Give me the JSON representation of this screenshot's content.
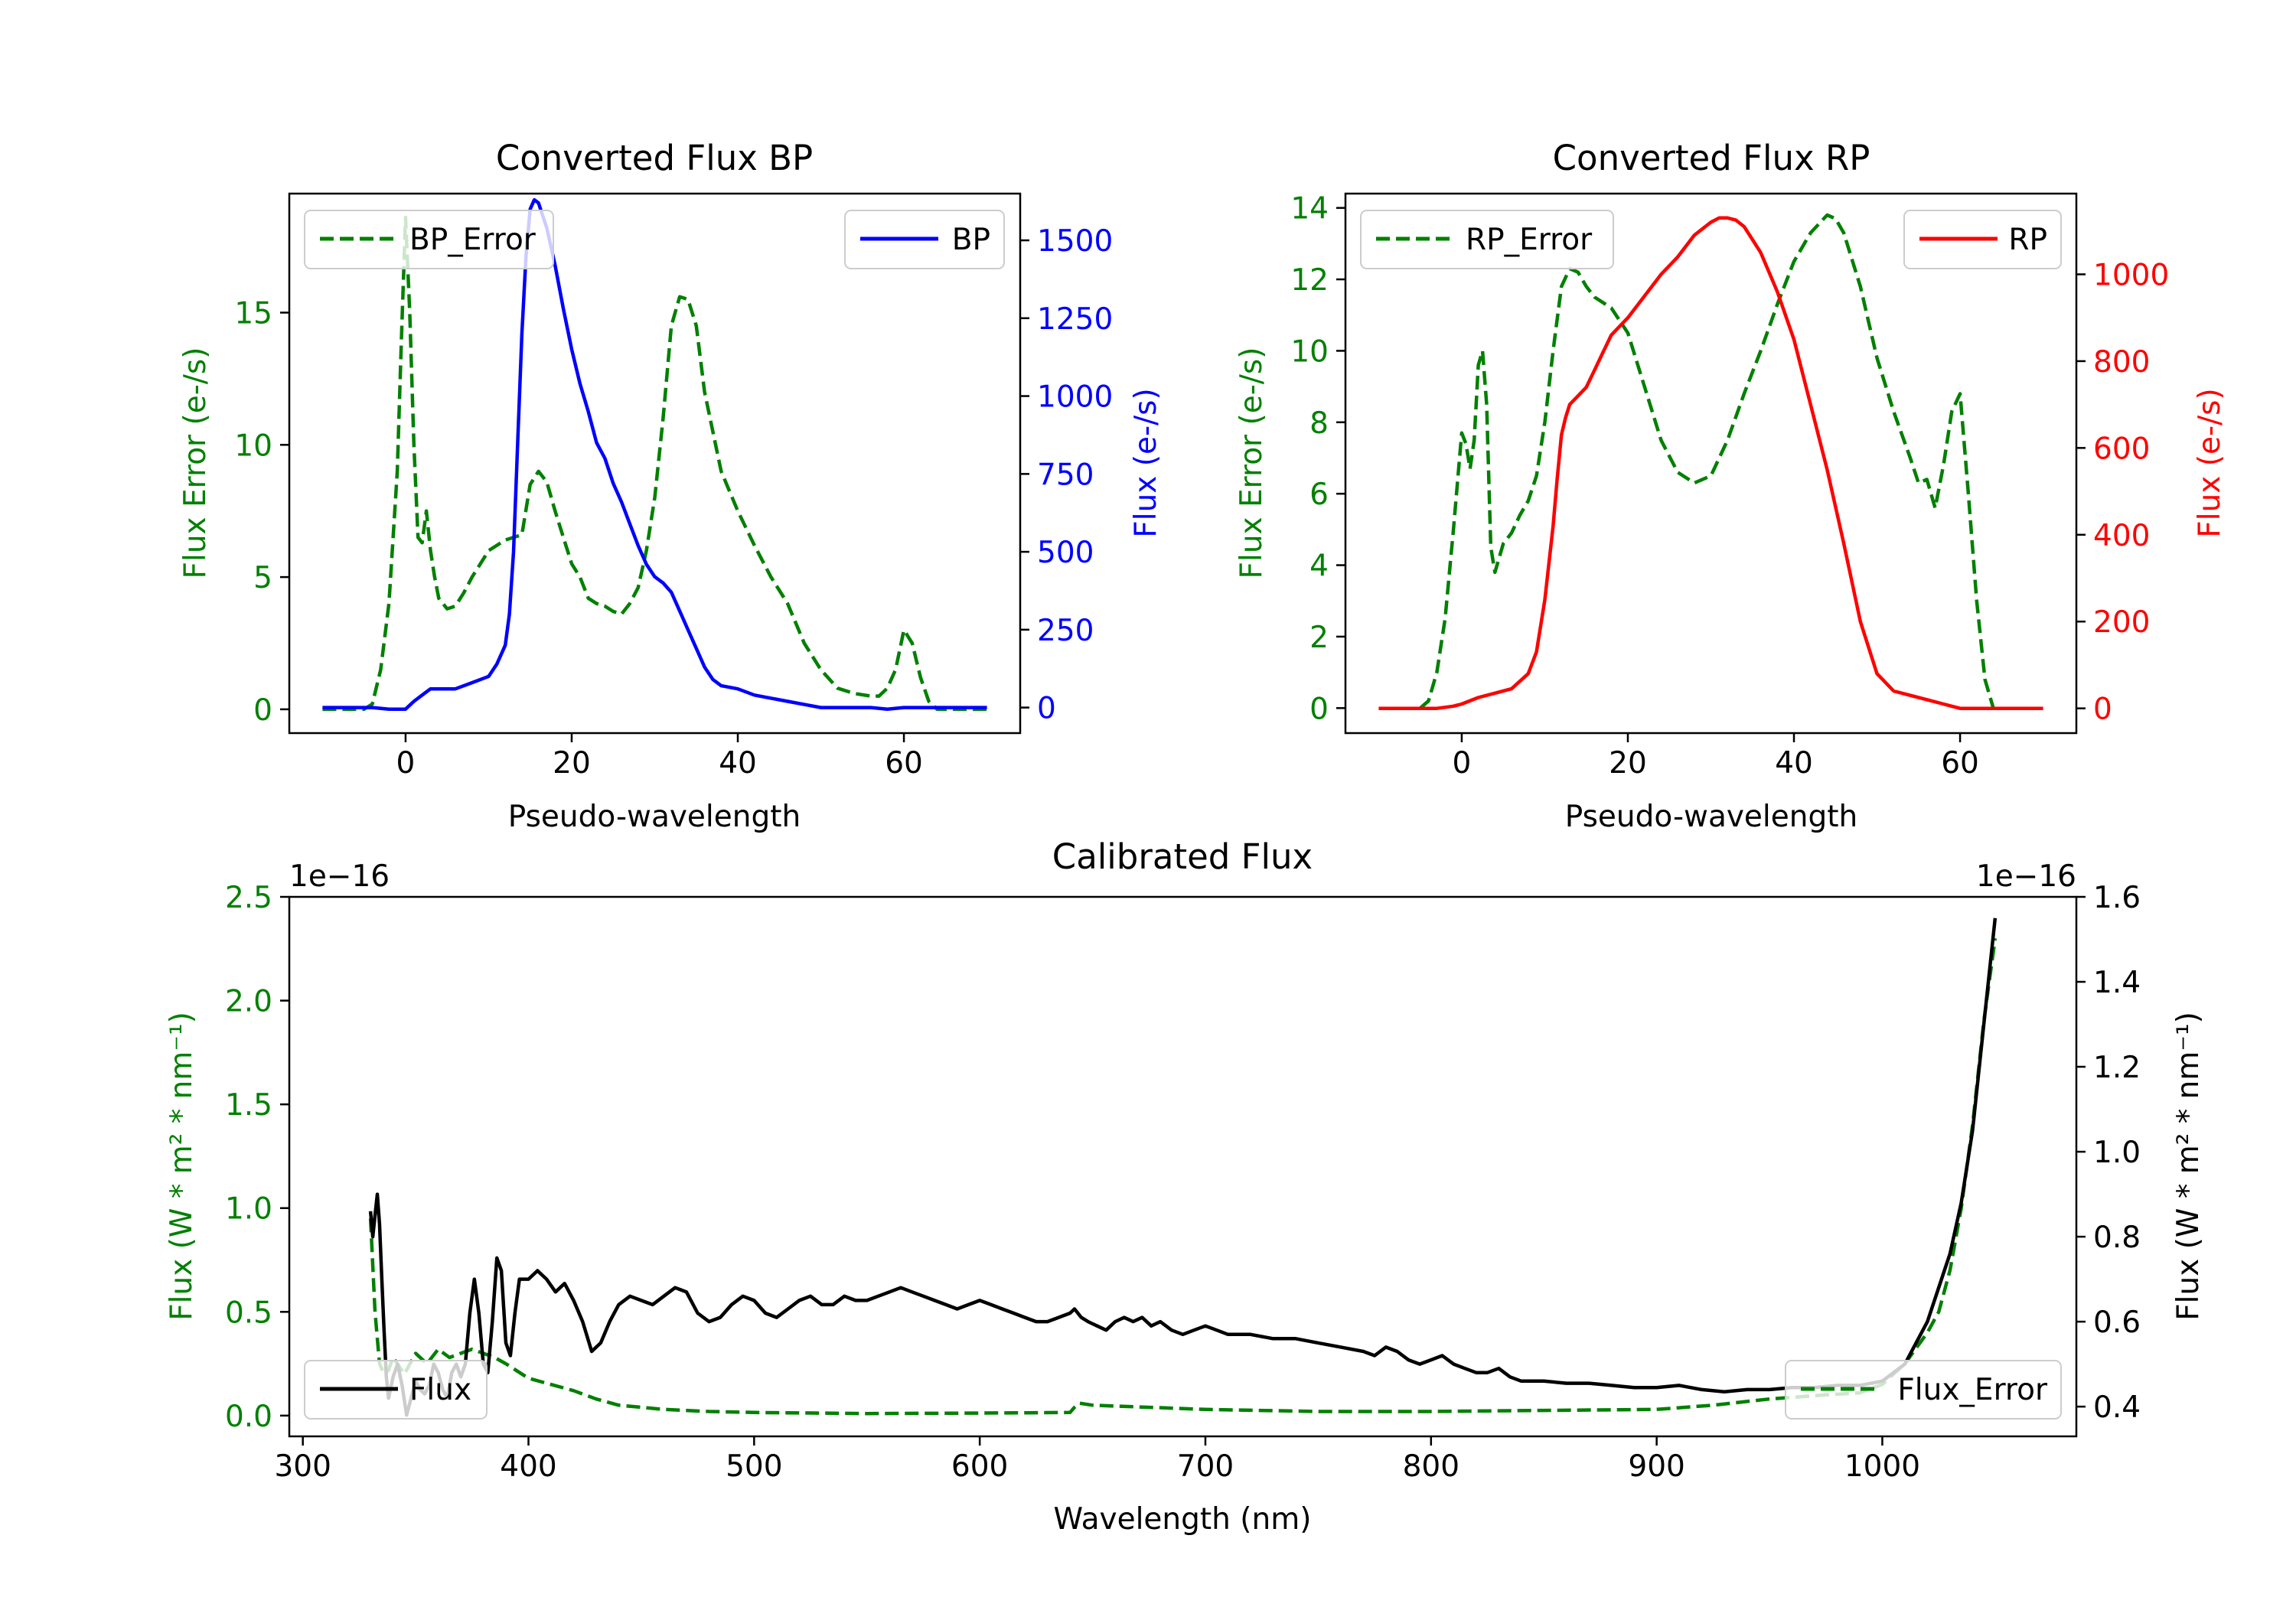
{
  "colors": {
    "err": "#008000",
    "bp": "#0000ff",
    "rp": "#ff0000",
    "flux": "#000000",
    "axis": "#000000"
  },
  "chart_data": [
    {
      "id": "bp",
      "type": "line",
      "title": "Converted Flux BP",
      "xlabel": "Pseudo-wavelength",
      "ylabel_left": "Flux Error (e-/s)",
      "ylabel_right": "Flux (e-/s)",
      "xlim": [
        -14,
        74
      ],
      "ylim_left": [
        -0.9,
        19.5
      ],
      "ylim_right": [
        -82,
        1650
      ],
      "xticks": [
        0,
        20,
        40,
        60
      ],
      "yticks_left": [
        0,
        5,
        10,
        15
      ],
      "yticks_right": [
        0,
        250,
        500,
        750,
        1000,
        1250,
        1500
      ],
      "legend_left": "BP_Error",
      "legend_right": "BP",
      "series_error": {
        "name": "BP_Error",
        "axis": "left",
        "style": "dashed",
        "x": [
          -10,
          -5,
          -4,
          -3,
          -2,
          -1,
          -0.5,
          0,
          0.5,
          1,
          1.5,
          2,
          2.5,
          3,
          3.5,
          4,
          5,
          6,
          7,
          8,
          10,
          12,
          14,
          15,
          16,
          17,
          18,
          19,
          20,
          21,
          22,
          23,
          24,
          25,
          26,
          27,
          28,
          29,
          30,
          31,
          32,
          33,
          34,
          35,
          36,
          38,
          40,
          42,
          44,
          46,
          48,
          50,
          52,
          54,
          56,
          57,
          58,
          59,
          60,
          61,
          62,
          63,
          64,
          66,
          68,
          70
        ],
        "values": [
          0,
          0,
          0.2,
          1.5,
          4,
          9,
          14,
          18.6,
          15,
          10,
          6.5,
          6.3,
          7.5,
          6,
          5,
          4.2,
          3.8,
          3.9,
          4.4,
          5,
          6,
          6.4,
          6.6,
          8.5,
          9,
          8.6,
          7.5,
          6.5,
          5.5,
          5,
          4.2,
          4,
          3.9,
          3.7,
          3.6,
          4,
          4.6,
          6,
          8,
          11,
          14.5,
          15.6,
          15.5,
          14.5,
          12,
          9,
          7.5,
          6.2,
          5,
          4,
          2.5,
          1.5,
          0.8,
          0.6,
          0.5,
          0.5,
          0.8,
          1.5,
          3,
          2.5,
          1.2,
          0.3,
          0,
          0,
          0,
          0
        ]
      },
      "series_flux": {
        "name": "BP",
        "axis": "right",
        "style": "solid",
        "x": [
          -10,
          -4,
          -2,
          0,
          1,
          2,
          3,
          4,
          6,
          8,
          10,
          11,
          12,
          12.5,
          13,
          13.5,
          14,
          14.5,
          15,
          15.5,
          16,
          17,
          18,
          19,
          20,
          21,
          22,
          23,
          24,
          25,
          26,
          27,
          28,
          29,
          30,
          31,
          32,
          33,
          34,
          35,
          36,
          37,
          38,
          40,
          42,
          44,
          46,
          48,
          50,
          52,
          54,
          56,
          58,
          60,
          62,
          64,
          66,
          68,
          70
        ],
        "values": [
          0,
          0,
          -5,
          -5,
          20,
          40,
          60,
          60,
          60,
          80,
          100,
          140,
          200,
          300,
          500,
          850,
          1200,
          1450,
          1600,
          1630,
          1620,
          1540,
          1420,
          1280,
          1150,
          1040,
          950,
          850,
          800,
          720,
          660,
          590,
          520,
          460,
          420,
          400,
          370,
          310,
          250,
          190,
          130,
          90,
          70,
          60,
          40,
          30,
          20,
          10,
          0,
          0,
          0,
          0,
          -5,
          0,
          0,
          0,
          0,
          0,
          0
        ]
      }
    },
    {
      "id": "rp",
      "type": "line",
      "title": "Converted Flux RP",
      "xlabel": "Pseudo-wavelength",
      "ylabel_left": "Flux Error (e-/s)",
      "ylabel_right": "Flux (e-/s)",
      "xlim": [
        -14,
        74
      ],
      "ylim_left": [
        -0.7,
        14.4
      ],
      "ylim_right": [
        -57,
        1186
      ],
      "xticks": [
        0,
        20,
        40,
        60
      ],
      "yticks_left": [
        0,
        2,
        4,
        6,
        8,
        10,
        12,
        14
      ],
      "yticks_right": [
        0,
        200,
        400,
        600,
        800,
        1000
      ],
      "legend_left": "RP_Error",
      "legend_right": "RP",
      "series_error": {
        "name": "RP_Error",
        "axis": "left",
        "style": "dashed",
        "x": [
          -5,
          -4,
          -3,
          -2,
          -1,
          0,
          0.5,
          1,
          1.5,
          2,
          2.5,
          3,
          3.5,
          4,
          5,
          6,
          7,
          8,
          9,
          10,
          11,
          12,
          13,
          14,
          15,
          16,
          18,
          20,
          22,
          24,
          26,
          28,
          30,
          32,
          34,
          36,
          38,
          40,
          42,
          44,
          45,
          46,
          48,
          50,
          52,
          54,
          55,
          56,
          57,
          58,
          59,
          60,
          61,
          62,
          63,
          64
        ],
        "values": [
          0,
          0.2,
          1,
          2.5,
          5,
          7.7,
          7.4,
          6.7,
          7.5,
          9.6,
          10,
          8.5,
          4.5,
          3.8,
          4.6,
          4.9,
          5.4,
          5.8,
          6.5,
          8,
          10,
          11.8,
          12.3,
          12.2,
          11.8,
          11.5,
          11.2,
          10.5,
          9,
          7.5,
          6.6,
          6.3,
          6.5,
          7.5,
          8.8,
          10,
          11.3,
          12.5,
          13.3,
          13.8,
          13.7,
          13.3,
          11.8,
          9.8,
          8.3,
          7,
          6.3,
          6.4,
          5.6,
          6.8,
          8.3,
          8.8,
          6,
          3,
          0.8,
          0
        ]
      },
      "series_flux": {
        "name": "RP",
        "axis": "right",
        "style": "solid",
        "x": [
          -10,
          -3,
          -1,
          0,
          2,
          4,
          6,
          8,
          9,
          10,
          11,
          11.5,
          12,
          12.5,
          13,
          14,
          15,
          16,
          17,
          18,
          20,
          22,
          24,
          26,
          28,
          30,
          31,
          32,
          33,
          34,
          35,
          36,
          38,
          40,
          42,
          44,
          46,
          48,
          50,
          52,
          54,
          56,
          58,
          60,
          62,
          64,
          70
        ],
        "values": [
          0,
          0,
          5,
          10,
          25,
          35,
          45,
          80,
          130,
          250,
          420,
          530,
          630,
          670,
          700,
          720,
          740,
          780,
          820,
          860,
          900,
          950,
          1000,
          1040,
          1090,
          1120,
          1130,
          1130,
          1125,
          1110,
          1080,
          1050,
          960,
          850,
          700,
          550,
          380,
          200,
          80,
          40,
          30,
          20,
          10,
          0,
          0,
          0,
          0
        ]
      }
    },
    {
      "id": "cal",
      "type": "line",
      "title": "Calibrated Flux",
      "xlabel": "Wavelength (nm)",
      "ylabel_left": "Flux (W * m² * nm⁻¹)",
      "ylabel_right": "Flux (W * m² * nm⁻¹)",
      "offset_left": "1e−16",
      "offset_right": "1e−16",
      "xlim": [
        294,
        1086
      ],
      "ylim_left": [
        -0.1,
        2.5
      ],
      "ylim_right": [
        0.33,
        1.6
      ],
      "xticks": [
        300,
        400,
        500,
        600,
        700,
        800,
        900,
        1000
      ],
      "yticks_left": [
        0.0,
        0.5,
        1.0,
        1.5,
        2.0,
        2.5
      ],
      "yticks_right": [
        0.4,
        0.6,
        0.8,
        1.0,
        1.2,
        1.4,
        1.6
      ],
      "legend_left": "Flux",
      "legend_right": "Flux_Error",
      "series_error": {
        "name": "Flux_Error",
        "axis": "left",
        "style": "dashed",
        "x": [
          330,
          332,
          334,
          336,
          338,
          340,
          345,
          350,
          355,
          360,
          365,
          370,
          375,
          380,
          385,
          390,
          400,
          410,
          420,
          430,
          440,
          460,
          480,
          500,
          550,
          600,
          640,
          642,
          644,
          650,
          700,
          750,
          800,
          850,
          900,
          925,
          950,
          975,
          990,
          1000,
          1010,
          1020,
          1025,
          1030,
          1035,
          1040,
          1045,
          1050
        ],
        "values": [
          0.95,
          0.5,
          0.25,
          0.2,
          0.22,
          0.28,
          0.2,
          0.3,
          0.25,
          0.32,
          0.28,
          0.3,
          0.32,
          0.3,
          0.28,
          0.25,
          0.18,
          0.15,
          0.12,
          0.08,
          0.05,
          0.03,
          0.02,
          0.015,
          0.01,
          0.012,
          0.015,
          0.04,
          0.06,
          0.05,
          0.03,
          0.02,
          0.02,
          0.025,
          0.03,
          0.05,
          0.08,
          0.1,
          0.11,
          0.15,
          0.25,
          0.4,
          0.5,
          0.7,
          1.0,
          1.4,
          1.9,
          2.3
        ]
      },
      "series_flux": {
        "name": "Flux",
        "axis": "right",
        "style": "solid",
        "x": [
          330,
          331,
          332,
          333,
          334,
          335,
          336,
          337,
          338,
          340,
          342,
          344,
          346,
          348,
          350,
          352,
          354,
          356,
          358,
          360,
          362,
          364,
          366,
          368,
          370,
          372,
          374,
          376,
          378,
          380,
          382,
          384,
          386,
          388,
          390,
          392,
          394,
          396,
          398,
          400,
          404,
          408,
          412,
          416,
          420,
          424,
          428,
          432,
          436,
          440,
          445,
          450,
          455,
          460,
          465,
          470,
          475,
          480,
          485,
          490,
          495,
          500,
          505,
          510,
          515,
          520,
          525,
          530,
          535,
          540,
          545,
          550,
          555,
          560,
          565,
          570,
          575,
          580,
          585,
          590,
          595,
          600,
          605,
          610,
          615,
          620,
          625,
          630,
          635,
          640,
          642,
          645,
          648,
          652,
          656,
          660,
          664,
          668,
          672,
          676,
          680,
          685,
          690,
          695,
          700,
          705,
          710,
          720,
          730,
          740,
          750,
          760,
          770,
          775,
          780,
          785,
          790,
          795,
          800,
          805,
          810,
          815,
          820,
          825,
          830,
          835,
          840,
          850,
          860,
          870,
          880,
          890,
          900,
          910,
          920,
          930,
          940,
          950,
          960,
          970,
          980,
          990,
          1000,
          1010,
          1020,
          1030,
          1035,
          1040,
          1045,
          1050
        ],
        "values": [
          0.86,
          0.8,
          0.85,
          0.9,
          0.83,
          0.7,
          0.58,
          0.47,
          0.42,
          0.47,
          0.5,
          0.45,
          0.38,
          0.42,
          0.46,
          0.44,
          0.43,
          0.45,
          0.5,
          0.48,
          0.44,
          0.42,
          0.48,
          0.5,
          0.47,
          0.5,
          0.62,
          0.7,
          0.62,
          0.5,
          0.48,
          0.6,
          0.75,
          0.72,
          0.55,
          0.52,
          0.62,
          0.7,
          0.7,
          0.7,
          0.72,
          0.7,
          0.67,
          0.69,
          0.65,
          0.6,
          0.53,
          0.55,
          0.6,
          0.64,
          0.66,
          0.65,
          0.64,
          0.66,
          0.68,
          0.67,
          0.62,
          0.6,
          0.61,
          0.64,
          0.66,
          0.65,
          0.62,
          0.61,
          0.63,
          0.65,
          0.66,
          0.64,
          0.64,
          0.66,
          0.65,
          0.65,
          0.66,
          0.67,
          0.68,
          0.67,
          0.66,
          0.65,
          0.64,
          0.63,
          0.64,
          0.65,
          0.64,
          0.63,
          0.62,
          0.61,
          0.6,
          0.6,
          0.61,
          0.62,
          0.63,
          0.61,
          0.6,
          0.59,
          0.58,
          0.6,
          0.61,
          0.6,
          0.61,
          0.59,
          0.6,
          0.58,
          0.57,
          0.58,
          0.59,
          0.58,
          0.57,
          0.57,
          0.56,
          0.56,
          0.55,
          0.54,
          0.53,
          0.52,
          0.54,
          0.53,
          0.51,
          0.5,
          0.51,
          0.52,
          0.5,
          0.49,
          0.48,
          0.48,
          0.49,
          0.47,
          0.46,
          0.46,
          0.455,
          0.455,
          0.45,
          0.445,
          0.445,
          0.45,
          0.44,
          0.435,
          0.44,
          0.44,
          0.445,
          0.445,
          0.45,
          0.45,
          0.46,
          0.5,
          0.6,
          0.76,
          0.88,
          1.05,
          1.3,
          1.55
        ]
      }
    }
  ]
}
